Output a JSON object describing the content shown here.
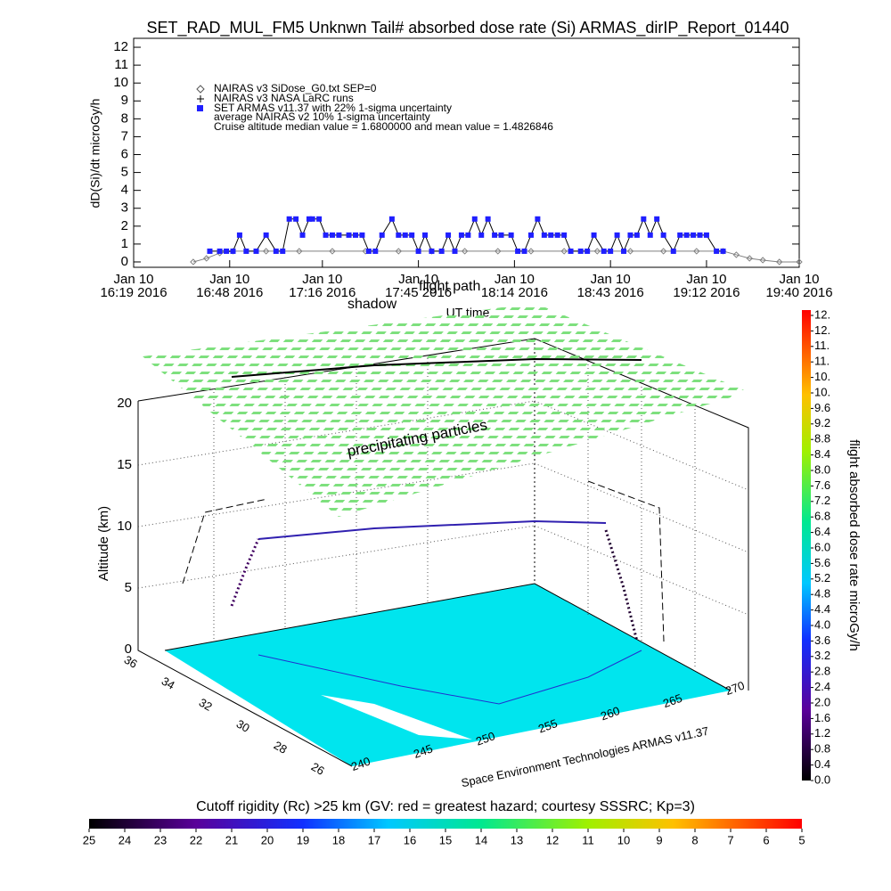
{
  "chart_data": {
    "type": "line",
    "title": "SET_RAD_MUL_FM5 Unknwn Tail#  absorbed dose rate (Si) ARMAS_dirIP_Report_01440",
    "ylabel": "dD(Si)/dt microGy/h",
    "xlabel": "UT time",
    "xlim": [
      0,
      201
    ],
    "xticks": [
      {
        "value": 0,
        "label": "Jan 10\n16:19 2016"
      },
      {
        "value": 29,
        "label": "Jan 10\n16:48 2016"
      },
      {
        "value": 57,
        "label": "Jan 10\n17:16 2016"
      },
      {
        "value": 86,
        "label": "Jan 10\n17:45 2016"
      },
      {
        "value": 115,
        "label": "Jan 10\n18:14 2016"
      },
      {
        "value": 144,
        "label": "Jan 10\n18:43 2016"
      },
      {
        "value": 173,
        "label": "Jan 10\n19:12 2016"
      },
      {
        "value": 201,
        "label": "Jan 10\n19:40 2016"
      }
    ],
    "ylim": [
      -0.3,
      12.5
    ],
    "yticks": [
      0,
      1,
      2,
      3,
      4,
      5,
      6,
      7,
      8,
      9,
      10,
      11,
      12
    ],
    "series": [
      {
        "name": "NAIRAS v3 SiDose_G0.txt SEP=0",
        "color": "#808080",
        "x": [
          18,
          22,
          26,
          30,
          40,
          50,
          60,
          70,
          80,
          90,
          100,
          110,
          120,
          130,
          140,
          150,
          160,
          170,
          178,
          182,
          186,
          190,
          195,
          201
        ],
        "values": [
          0,
          0.2,
          0.5,
          0.6,
          0.6,
          0.6,
          0.6,
          0.6,
          0.6,
          0.6,
          0.6,
          0.6,
          0.6,
          0.6,
          0.6,
          0.6,
          0.6,
          0.6,
          0.6,
          0.4,
          0.2,
          0.1,
          0,
          0
        ]
      },
      {
        "name": "SET ARMAS v11.37 with 22% 1-sigma uncertainty",
        "color": "#1f1fff",
        "x": [
          23,
          26,
          28,
          30,
          32,
          34,
          37,
          40,
          43,
          45,
          47,
          49,
          51,
          53,
          54,
          56,
          58,
          60,
          62,
          65,
          67,
          69,
          71,
          73,
          75,
          78,
          80,
          82,
          84,
          86,
          88,
          90,
          93,
          95,
          97,
          99,
          101,
          103,
          105,
          107,
          109,
          111,
          114,
          116,
          118,
          120,
          122,
          124,
          126,
          128,
          130,
          132,
          135,
          137,
          139,
          142,
          144,
          146,
          148,
          150,
          152,
          154,
          156,
          158,
          160,
          163,
          165,
          167,
          169,
          171,
          173,
          176,
          178
        ],
        "values": [
          0.6,
          0.6,
          0.6,
          0.6,
          1.5,
          0.6,
          0.6,
          1.5,
          0.6,
          0.6,
          2.4,
          2.4,
          1.5,
          2.4,
          2.4,
          2.4,
          1.5,
          1.5,
          1.5,
          1.5,
          1.5,
          1.5,
          0.6,
          0.6,
          1.5,
          2.4,
          1.5,
          1.5,
          1.5,
          0.6,
          1.5,
          0.6,
          0.6,
          1.5,
          0.6,
          1.5,
          1.5,
          2.4,
          1.5,
          2.4,
          1.5,
          1.5,
          1.5,
          0.6,
          0.6,
          1.5,
          2.4,
          1.5,
          1.5,
          1.5,
          1.5,
          0.6,
          0.6,
          0.6,
          1.5,
          0.6,
          0.6,
          1.5,
          0.6,
          1.5,
          1.5,
          2.4,
          1.5,
          2.4,
          1.5,
          0.6,
          1.5,
          1.5,
          1.5,
          1.5,
          1.5,
          0.6,
          0.6
        ]
      }
    ],
    "legend_notes": [
      "NAIRAS v3 NASA LaRC runs",
      "average NAIRAS v2 10% 1-sigma uncertainty",
      "Cruise altitude median value = 1.6800000 and mean value = 1.4826846"
    ],
    "annotations": [
      "shadow",
      "flight path"
    ]
  },
  "scene": {
    "annotation": "precipitating particles",
    "zlabel": "Altitude (km)",
    "zticks": [
      0,
      5,
      10,
      15,
      20
    ],
    "lat_ticks": [
      36,
      34,
      32,
      30,
      28,
      26
    ],
    "lon_ticks": [
      240,
      245,
      250,
      255,
      260,
      265,
      270
    ],
    "credit": "Space Environment Technologies ARMAS v11.37"
  },
  "dose_colorbar": {
    "label": "flight absorbed dose rate microGy/h",
    "ticks": [
      {
        "value": 0,
        "label": "0.0"
      },
      0.4,
      0.8,
      1.2,
      1.6,
      {
        "value": 2,
        "label": "2.0"
      },
      2.4,
      2.8,
      3.2,
      3.6,
      {
        "value": 4,
        "label": "4.0"
      },
      4.4,
      4.8,
      5.2,
      5.6,
      {
        "value": 6,
        "label": "6.0"
      },
      6.4,
      6.8,
      7.2,
      7.6,
      {
        "value": 8,
        "label": "8.0"
      },
      8.4,
      8.8,
      9.2,
      9.6,
      {
        "value": 10,
        "label": "10."
      },
      {
        "value": 10.4,
        "label": "10."
      },
      {
        "value": 10.8,
        "label": "11."
      },
      {
        "value": 11.2,
        "label": "11."
      },
      {
        "value": 11.6,
        "label": "12."
      },
      {
        "value": 12,
        "label": "12."
      }
    ]
  },
  "rigidity_colorbar": {
    "title": "Cutoff rigidity (Rc) >25 km (GV: red = greatest hazard; courtesy SSSRC; Kp=3)",
    "ticks": [
      25,
      24,
      23,
      22,
      21,
      20,
      19,
      18,
      17,
      16,
      15,
      14,
      13,
      12,
      11,
      10,
      9,
      8,
      7,
      6,
      5
    ]
  }
}
